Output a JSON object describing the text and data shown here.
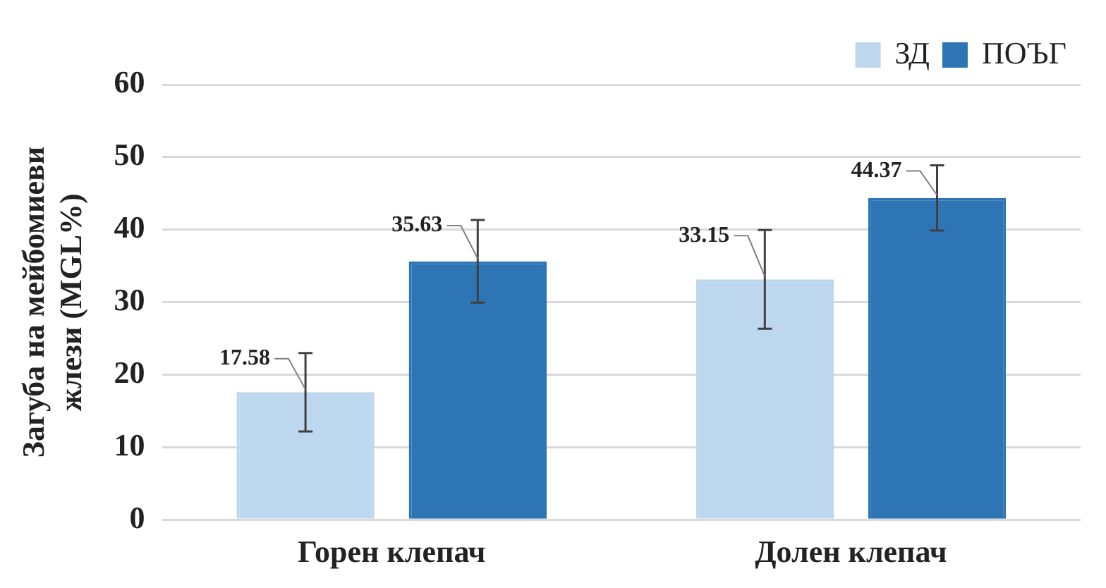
{
  "chart_data": {
    "type": "bar",
    "ylabel": "Загуба на мейбомиеви жлези (MGL%)",
    "categories": [
      "Горен клепач",
      "Долен клепач"
    ],
    "series": [
      {
        "name": "ЗД",
        "color": "#bdd7ee",
        "values": [
          17.58,
          33.15
        ],
        "errors": [
          5.4,
          6.8
        ]
      },
      {
        "name": "ПОЪГ",
        "color": "#2e75b6",
        "values": [
          35.63,
          44.37
        ],
        "errors": [
          5.7,
          4.5
        ]
      }
    ],
    "ylim": [
      0,
      60
    ],
    "yticks": [
      0,
      10,
      20,
      30,
      40,
      50,
      60
    ],
    "grid": "y",
    "legend": "top right",
    "data_labels": true
  }
}
